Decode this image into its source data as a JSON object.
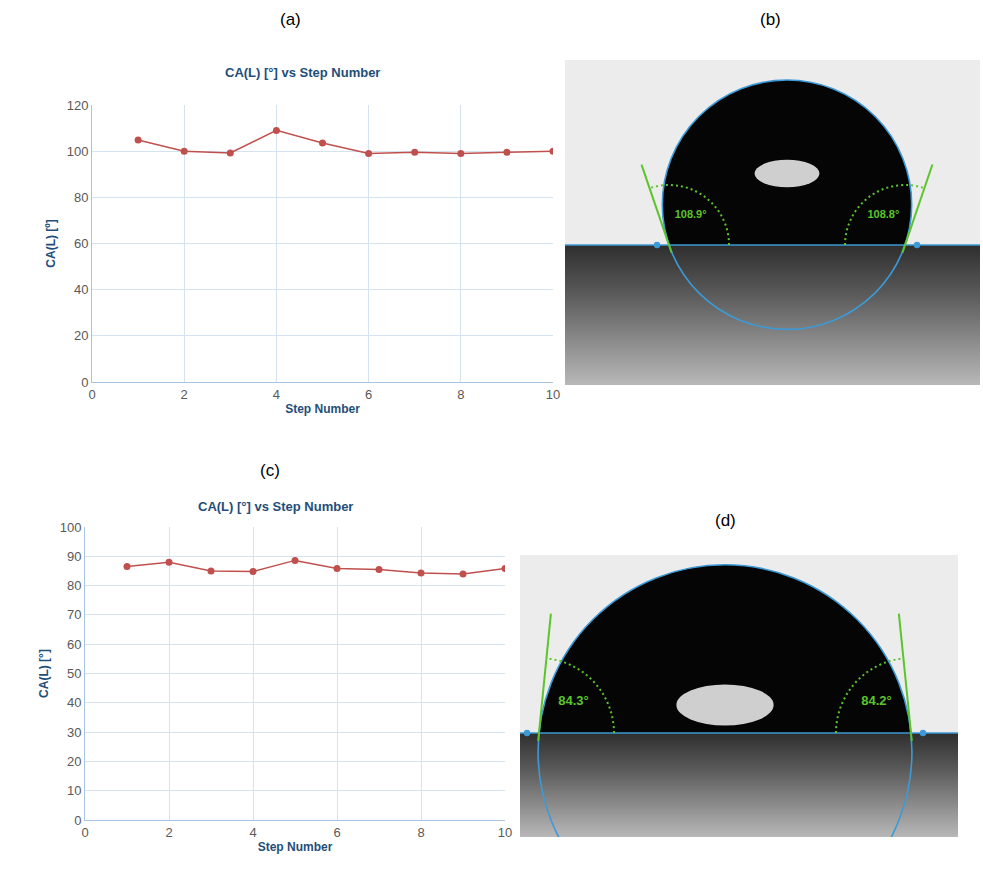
{
  "chart_data": [
    {
      "panel": "(a)",
      "type": "line",
      "title": "CA(L) [°] vs Step Number",
      "x_label": "Step Number",
      "y_label": "CA(L) [º]",
      "x": [
        1,
        2,
        3,
        4,
        5,
        6,
        7,
        8,
        9,
        10
      ],
      "values": [
        104.8,
        100,
        99.2,
        109,
        103.5,
        99,
        99.5,
        99,
        99.5,
        100
      ],
      "color": "#c0504d",
      "marker": "circle",
      "xlim": [
        0,
        10
      ],
      "xticks": [
        0,
        2,
        4,
        6,
        8,
        10
      ],
      "ylim": [
        0,
        120
      ],
      "yticks": [
        0,
        20,
        40,
        60,
        80,
        100,
        120
      ],
      "grid": true
    },
    {
      "panel": "(c)",
      "type": "line",
      "title": "CA(L) [°] vs Step Number",
      "x_label": "Step Number",
      "y_label": "CA(L) [°]",
      "x": [
        1,
        2,
        3,
        4,
        5,
        6,
        7,
        8,
        9,
        10
      ],
      "values": [
        86.5,
        88,
        85,
        84.8,
        88.6,
        85.8,
        85.5,
        84.3,
        84,
        85.8
      ],
      "color": "#c0504d",
      "marker": "circle",
      "xlim": [
        0,
        10
      ],
      "xticks": [
        0,
        2,
        4,
        6,
        8,
        10
      ],
      "ylim": [
        0,
        100
      ],
      "yticks": [
        0,
        10,
        20,
        30,
        40,
        50,
        60,
        70,
        80,
        90,
        100
      ],
      "grid": true
    }
  ],
  "images": [
    {
      "panel": "(b)",
      "angles": [
        {
          "value": 108.9,
          "label": "108.9°"
        },
        {
          "value": 108.8,
          "label": "108.8°"
        }
      ]
    },
    {
      "panel": "(d)",
      "angles": [
        {
          "value": 84.3,
          "label": "84.3°"
        },
        {
          "value": 84.2,
          "label": "84.2°"
        }
      ]
    }
  ]
}
